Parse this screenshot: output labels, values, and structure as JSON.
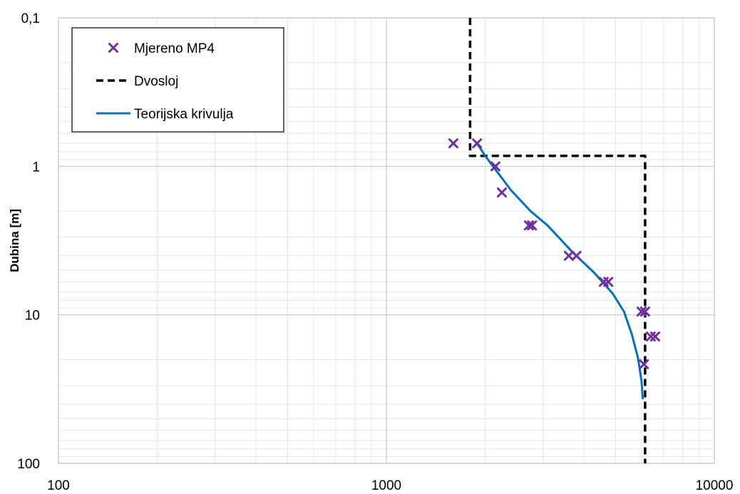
{
  "chart_data": {
    "type": "scatter",
    "title": "",
    "xlabel": "",
    "ylabel": "Dubina [m]",
    "x_scale": "log",
    "y_scale": "log",
    "y_inverted": true,
    "xlim": [
      100,
      10000
    ],
    "ylim": [
      0.1,
      100
    ],
    "x_ticks": [
      "100",
      "1000",
      "10000"
    ],
    "y_ticks": [
      "0,1",
      "1",
      "10",
      "100"
    ],
    "grid": true,
    "legend_position": "top-left",
    "series": [
      {
        "name": "Mjereno MP4",
        "kind": "markers",
        "marker": "x",
        "color": "#7030A0",
        "points": [
          {
            "x": 1600,
            "y": 0.7
          },
          {
            "x": 1890,
            "y": 0.7
          },
          {
            "x": 2150,
            "y": 1.0
          },
          {
            "x": 2250,
            "y": 1.5
          },
          {
            "x": 2720,
            "y": 2.5
          },
          {
            "x": 2780,
            "y": 2.5
          },
          {
            "x": 3600,
            "y": 4.0
          },
          {
            "x": 3800,
            "y": 4.0
          },
          {
            "x": 4600,
            "y": 6.0
          },
          {
            "x": 4750,
            "y": 6.0
          },
          {
            "x": 6000,
            "y": 9.5
          },
          {
            "x": 6150,
            "y": 9.5
          },
          {
            "x": 6400,
            "y": 14.0
          },
          {
            "x": 6600,
            "y": 14.0
          },
          {
            "x": 6100,
            "y": 21.5
          }
        ]
      },
      {
        "name": "Dvosloj",
        "kind": "line",
        "dash": true,
        "color": "#000000",
        "points": [
          {
            "x": 1800,
            "y": 0.1
          },
          {
            "x": 1800,
            "y": 0.85
          },
          {
            "x": 6150,
            "y": 0.85
          },
          {
            "x": 6150,
            "y": 100
          }
        ]
      },
      {
        "name": "Teorijska krivulja",
        "kind": "line",
        "dash": false,
        "color": "#0070C0",
        "points": [
          {
            "x": 1890,
            "y": 0.7
          },
          {
            "x": 2000,
            "y": 0.85
          },
          {
            "x": 2150,
            "y": 1.05
          },
          {
            "x": 2400,
            "y": 1.45
          },
          {
            "x": 2750,
            "y": 2.0
          },
          {
            "x": 3100,
            "y": 2.5
          },
          {
            "x": 3700,
            "y": 3.8
          },
          {
            "x": 4300,
            "y": 5.2
          },
          {
            "x": 4900,
            "y": 7.2
          },
          {
            "x": 5300,
            "y": 9.5
          },
          {
            "x": 5600,
            "y": 13.5
          },
          {
            "x": 5850,
            "y": 19.5
          },
          {
            "x": 6000,
            "y": 28.0
          },
          {
            "x": 6050,
            "y": 37.0
          }
        ]
      }
    ]
  }
}
